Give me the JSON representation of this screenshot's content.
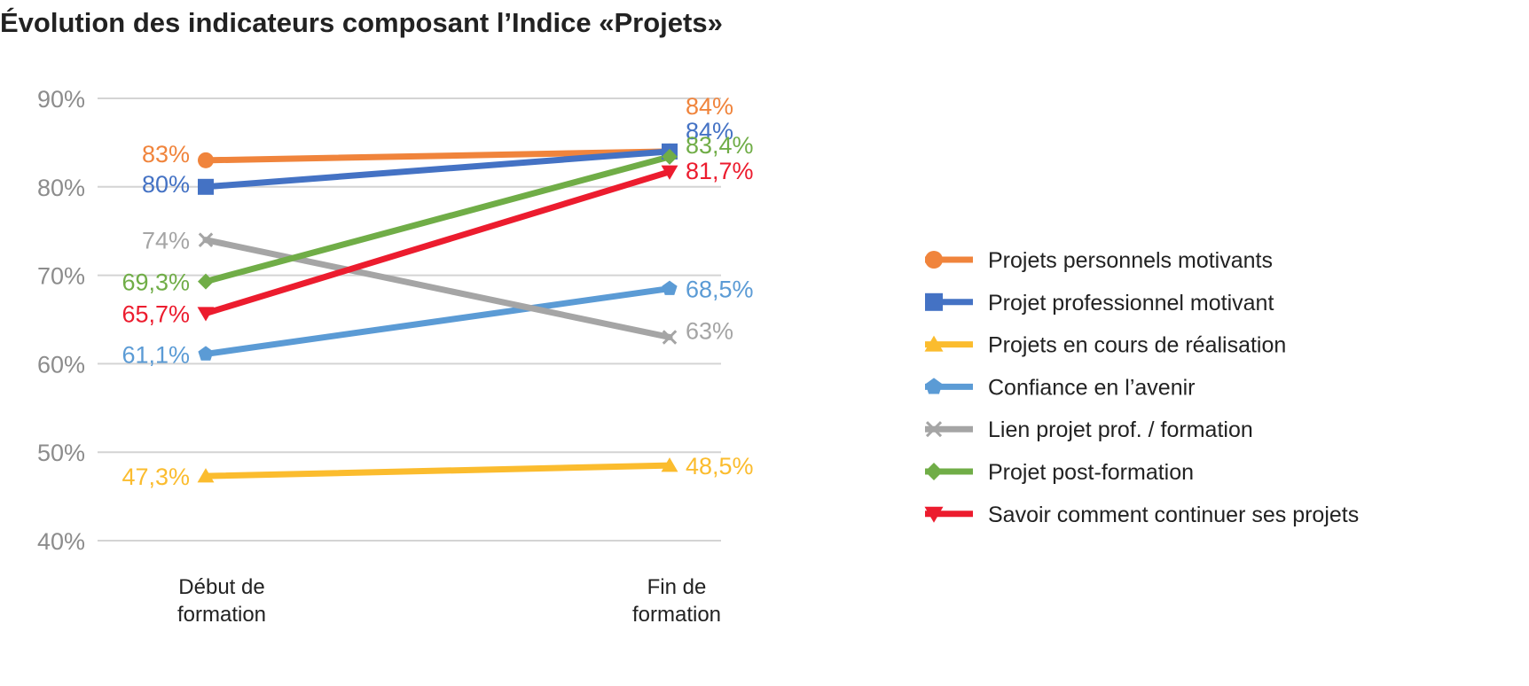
{
  "chart_data": {
    "type": "line",
    "title": "Évolution des indicateurs composant l’Indice «Projets»",
    "categories": [
      [
        "Début de",
        "formation"
      ],
      [
        "Fin de",
        "formation"
      ]
    ],
    "ylim": [
      40,
      90
    ],
    "yticks": [
      "40%",
      "50%",
      "60%",
      "70%",
      "80%",
      "90%"
    ],
    "grid": true,
    "legend_position": "right",
    "series": [
      {
        "name": "Projets personnels motivants",
        "values": [
          83,
          84
        ],
        "labels": [
          "83%",
          "84%"
        ],
        "color": "#F0843C",
        "marker": "circle"
      },
      {
        "name": "Projet professionnel motivant",
        "values": [
          80,
          84
        ],
        "labels": [
          "80%",
          "84%"
        ],
        "color": "#4472C4",
        "marker": "square"
      },
      {
        "name": "Projets en cours de réalisation",
        "values": [
          47.3,
          48.5
        ],
        "labels": [
          "47,3%",
          "48,5%"
        ],
        "color": "#FBBC2E",
        "marker": "triangle-up"
      },
      {
        "name": "Confiance en l’avenir",
        "values": [
          61.1,
          68.5
        ],
        "labels": [
          "61,1%",
          "68,5%"
        ],
        "color": "#5B9BD5",
        "marker": "pentagon"
      },
      {
        "name": "Lien projet prof. / formation",
        "values": [
          74,
          63
        ],
        "labels": [
          "74%",
          "63%"
        ],
        "color": "#A5A5A5",
        "marker": "x"
      },
      {
        "name": "Projet post-formation",
        "values": [
          69.3,
          83.4
        ],
        "labels": [
          "69,3%",
          "83,4%"
        ],
        "color": "#70AD47",
        "marker": "diamond"
      },
      {
        "name": "Savoir comment continuer ses projets",
        "values": [
          65.7,
          81.7
        ],
        "labels": [
          "65,7%",
          "81,7%"
        ],
        "color": "#EC1C2E",
        "marker": "triangle-down"
      }
    ]
  }
}
